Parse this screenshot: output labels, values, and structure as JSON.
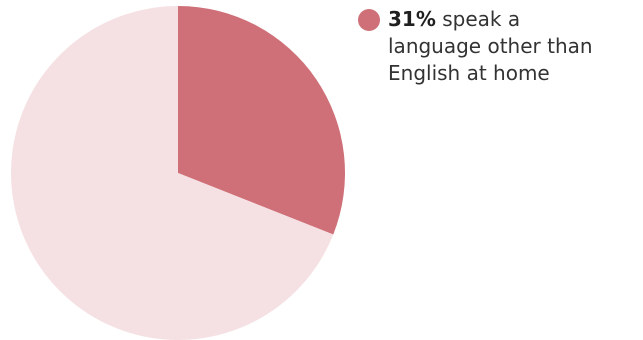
{
  "chart_data": {
    "type": "pie",
    "title": "",
    "slices": [
      {
        "label": "speak a language other than English at home",
        "value": 31,
        "color": "#cf7078"
      },
      {
        "label": "",
        "value": 69,
        "color": "#f5e1e3"
      }
    ],
    "start_angle_deg": 0,
    "direction": "clockwise",
    "legend_position": "top-right"
  },
  "legend": {
    "value_text": "31%",
    "label_line1": "speak a",
    "label_line2": "language other than",
    "label_line3": "English at home"
  }
}
